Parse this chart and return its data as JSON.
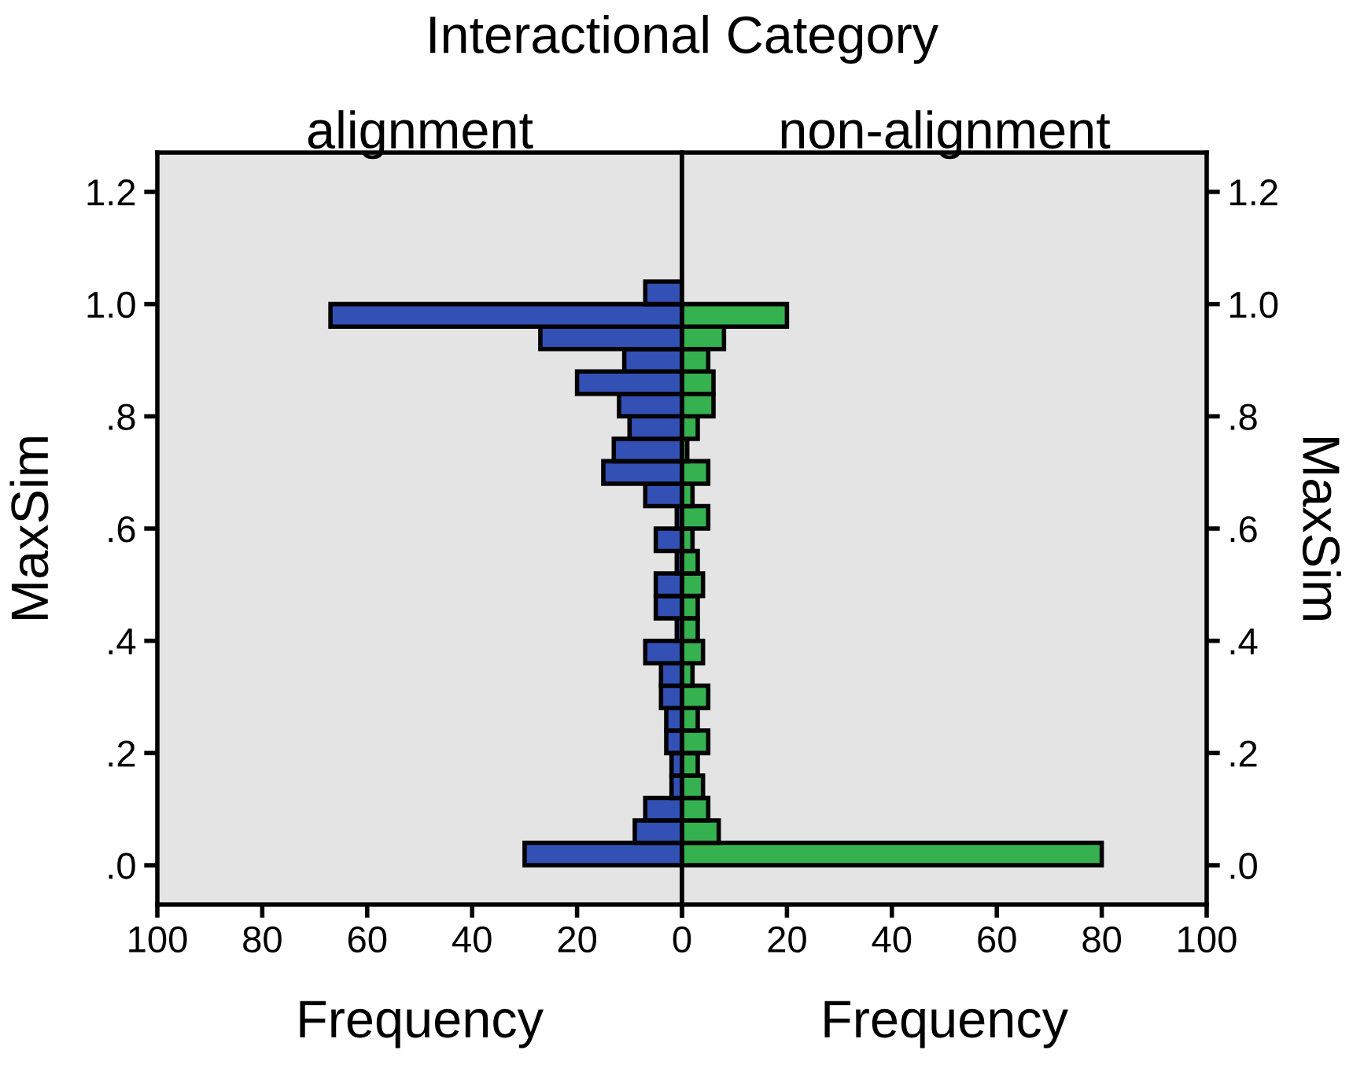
{
  "chart_data": [
    {
      "type": "histogram",
      "orientation": "horizontal",
      "title": "alignment",
      "annotations": [
        "Interactional Category"
      ],
      "xlabel": "Frequency",
      "ylabel": "MaxSim",
      "color": "#3350b5",
      "bins": [
        0,
        0.04,
        0.08,
        0.12,
        0.16,
        0.2,
        0.24,
        0.28,
        0.32,
        0.36,
        0.4,
        0.44,
        0.48,
        0.52,
        0.56,
        0.6,
        0.64,
        0.68,
        0.72,
        0.76,
        0.8,
        0.84,
        0.88,
        0.92,
        0.96,
        1.0,
        1.04
      ],
      "values": [
        30,
        9,
        7,
        2,
        2,
        3,
        3,
        4,
        4,
        7,
        1,
        5,
        5,
        1,
        5,
        1,
        7,
        15,
        13,
        10,
        12,
        20,
        11,
        27,
        67,
        7
      ],
      "xlim": [
        100,
        0
      ],
      "xticks": [
        100,
        80,
        60,
        40,
        20,
        0
      ],
      "ylim": [
        -0.07,
        1.27
      ],
      "yticks": [
        {
          "value": 0,
          "label": ".0"
        },
        {
          "value": 0.2,
          "label": ".2"
        },
        {
          "value": 0.4,
          "label": ".4"
        },
        {
          "value": 0.6,
          "label": ".6"
        },
        {
          "value": 0.8,
          "label": ".8"
        },
        {
          "value": 1.0,
          "label": "1.0"
        },
        {
          "value": 1.2,
          "label": "1.2"
        }
      ],
      "grid": false
    },
    {
      "type": "histogram",
      "orientation": "horizontal",
      "title": "non-alignment",
      "xlabel": "Frequency",
      "ylabel": "MaxSim",
      "color": "#35b24f",
      "bins": [
        0,
        0.04,
        0.08,
        0.12,
        0.16,
        0.2,
        0.24,
        0.28,
        0.32,
        0.36,
        0.4,
        0.44,
        0.48,
        0.52,
        0.56,
        0.6,
        0.64,
        0.68,
        0.72,
        0.76,
        0.8,
        0.84,
        0.88,
        0.92,
        0.96,
        1.0,
        1.04
      ],
      "values": [
        80,
        7,
        5,
        4,
        3,
        5,
        3,
        5,
        2,
        4,
        3,
        3,
        4,
        3,
        2,
        5,
        2,
        5,
        1,
        3,
        6,
        6,
        5,
        8,
        20,
        0
      ],
      "xlim": [
        0,
        100
      ],
      "xticks": [
        {
          "value": 0,
          "label": null
        },
        20,
        40,
        60,
        80,
        100
      ],
      "ylim": [
        -0.07,
        1.27
      ],
      "yticks": [
        {
          "value": 0,
          "label": ".0"
        },
        {
          "value": 0.2,
          "label": ".2"
        },
        {
          "value": 0.4,
          "label": ".4"
        },
        {
          "value": 0.6,
          "label": ".6"
        },
        {
          "value": 0.8,
          "label": ".8"
        },
        {
          "value": 1.0,
          "label": "1.0"
        },
        {
          "value": 1.2,
          "label": "1.2"
        }
      ],
      "grid": false
    }
  ]
}
